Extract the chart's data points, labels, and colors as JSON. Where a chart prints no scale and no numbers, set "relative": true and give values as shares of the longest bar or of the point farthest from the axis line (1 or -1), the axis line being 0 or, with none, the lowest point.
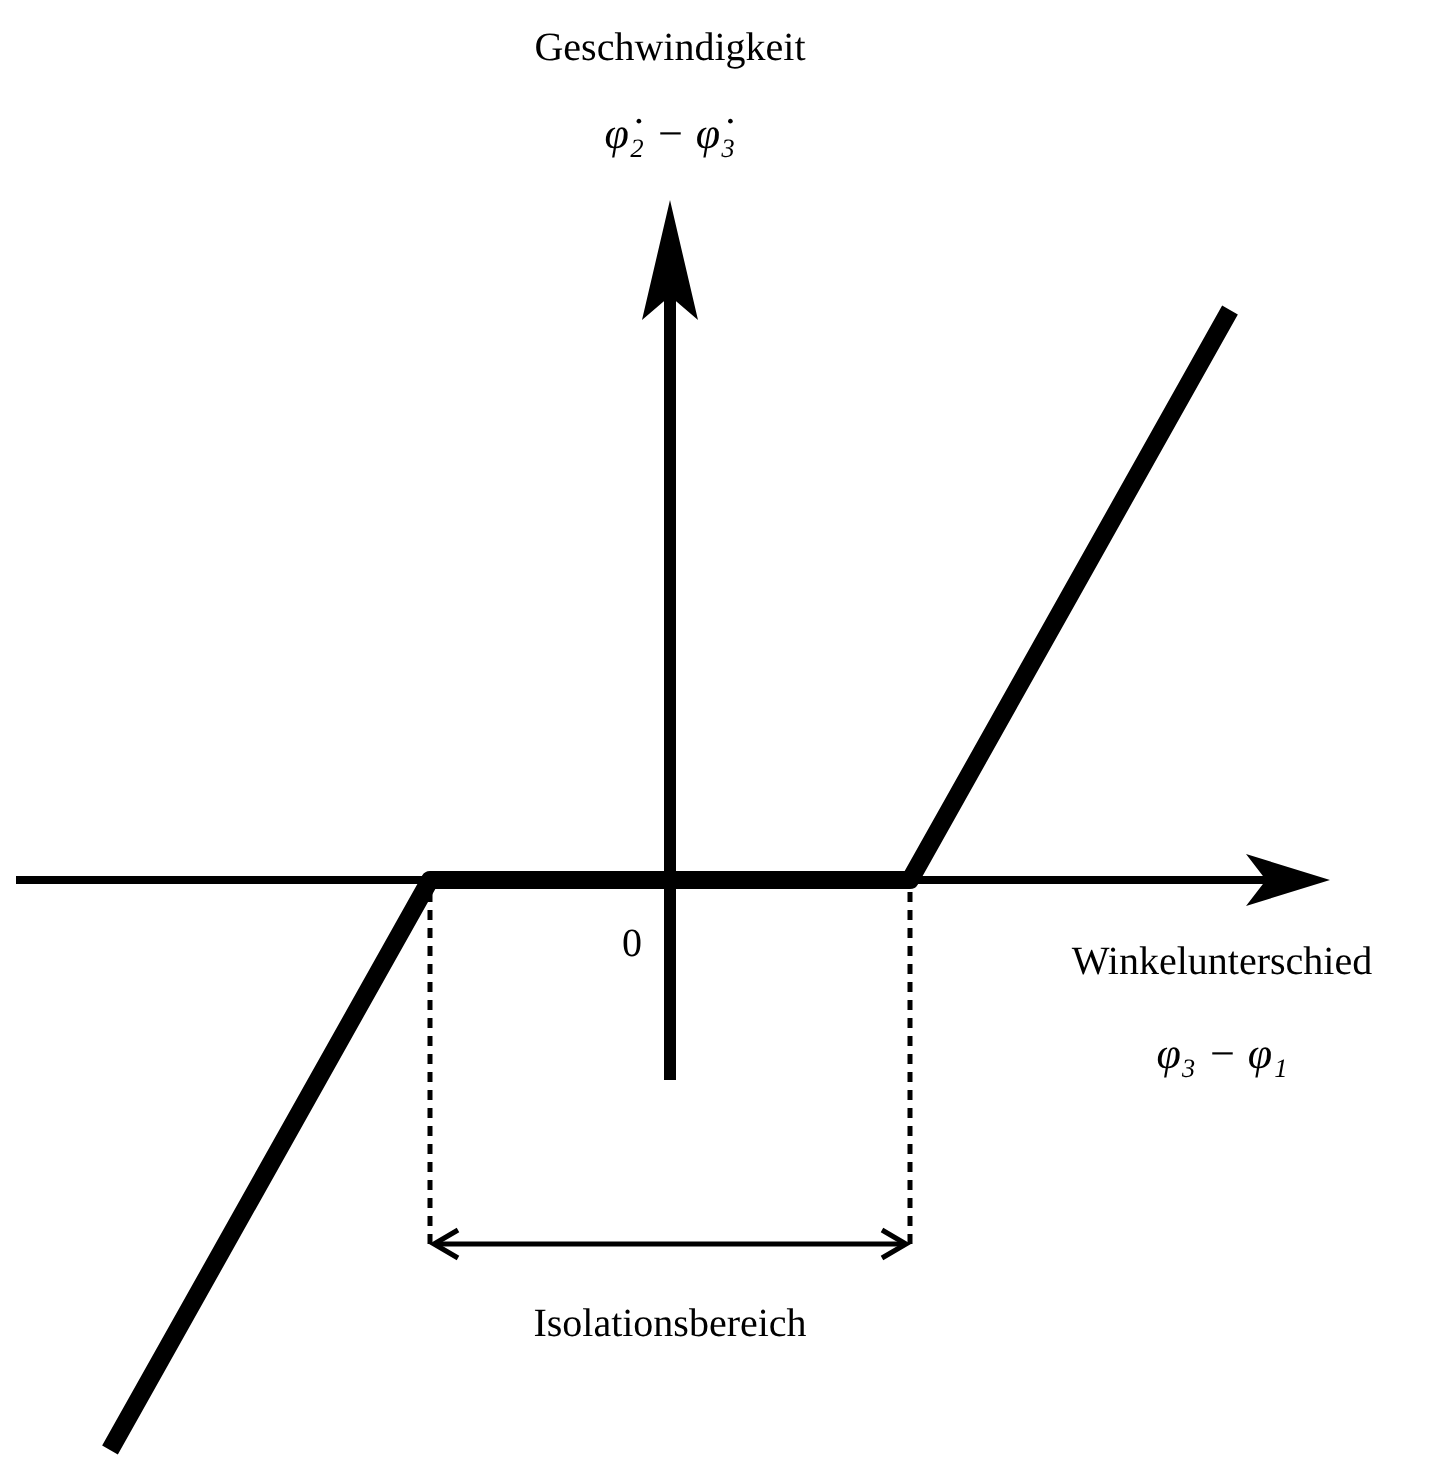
{
  "chart_data": {
    "type": "line",
    "relative": true,
    "xlabel": "Winkelunterschied",
    "annotations": [
      "Geschwindigkeit",
      "φ̇₂ − φ̇₃",
      "φ₃ − φ₁",
      "0",
      "Isolationsbereich"
    ],
    "categories": [
      null,
      null,
      null,
      null,
      null,
      null,
      null,
      null
    ],
    "values": [
      -1,
      -0.5,
      0,
      0,
      0,
      0,
      0.5,
      1
    ],
    "color": "#000000"
  }
}
